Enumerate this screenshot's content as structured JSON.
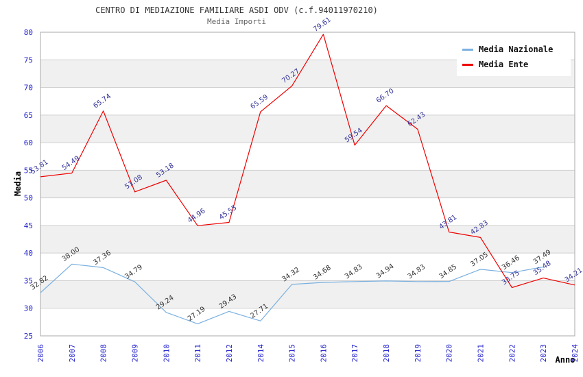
{
  "chart_data": {
    "type": "line",
    "title": "CENTRO DI MEDIAZIONE FAMILIARE ASDI ODV (c.f.94011970210)",
    "subtitle": "Media Importi",
    "xlabel": "Anno",
    "ylabel": "Media",
    "ylim": [
      25,
      80
    ],
    "ytick_step": 5,
    "yticks": [
      25,
      30,
      35,
      40,
      45,
      50,
      55,
      60,
      65,
      70,
      75,
      80
    ],
    "grid": "horizontal-only",
    "alternating_bands": true,
    "legend_position": "top-right",
    "categories": [
      "2006",
      "2007",
      "2008",
      "2009",
      "2010",
      "2011",
      "2012",
      "2014",
      "2015",
      "2016",
      "2017",
      "2018",
      "2019",
      "2020",
      "2021",
      "2022",
      "2023",
      "2024"
    ],
    "series": [
      {
        "name": "Media Nazionale",
        "color": "#7ab0e0",
        "label_color": "#333333",
        "values": [
          32.82,
          38.0,
          37.36,
          34.79,
          29.24,
          27.19,
          29.43,
          27.71,
          34.32,
          34.68,
          34.83,
          34.94,
          34.83,
          34.85,
          37.05,
          36.46,
          37.49,
          null
        ]
      },
      {
        "name": "Media Ente",
        "color": "#ee0000",
        "label_color": "#333399",
        "values": [
          53.81,
          54.49,
          65.74,
          51.08,
          53.18,
          44.96,
          45.55,
          65.59,
          70.27,
          79.61,
          59.54,
          66.7,
          62.43,
          43.81,
          42.83,
          33.75,
          35.48,
          34.21
        ]
      }
    ],
    "colors": {
      "tick_label": "#2222cc",
      "grid_line": "#cfcfcf",
      "band_fill": "#f0f0f0",
      "plot_border": "#aaaaaa",
      "axis_title": "#000000",
      "title_text": "#333333",
      "subtitle_text": "#666666",
      "background": "#ffffff"
    }
  }
}
